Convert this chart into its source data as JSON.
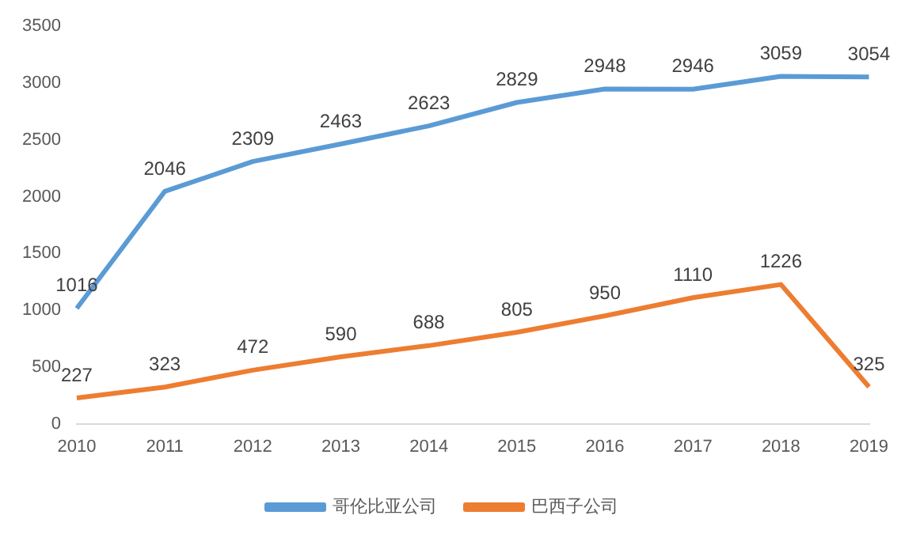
{
  "chart_data": {
    "type": "line",
    "categories": [
      "2010",
      "2011",
      "2012",
      "2013",
      "2014",
      "2015",
      "2016",
      "2017",
      "2018",
      "2019"
    ],
    "series": [
      {
        "name": "哥伦比亚公司",
        "color": "#5b9bd5",
        "values": [
          1016,
          2046,
          2309,
          2463,
          2623,
          2829,
          2948,
          2946,
          3059,
          3054
        ]
      },
      {
        "name": "巴西子公司",
        "color": "#ed7d31",
        "values": [
          227,
          323,
          472,
          590,
          688,
          805,
          950,
          1110,
          1226,
          325
        ]
      }
    ],
    "ylim": [
      0,
      3500
    ],
    "yticks": [
      0,
      500,
      1000,
      1500,
      2000,
      2500,
      3000,
      3500
    ],
    "grid": false,
    "legend": "bottom",
    "data_labels": true,
    "marker": "none",
    "line_style": "solid"
  }
}
